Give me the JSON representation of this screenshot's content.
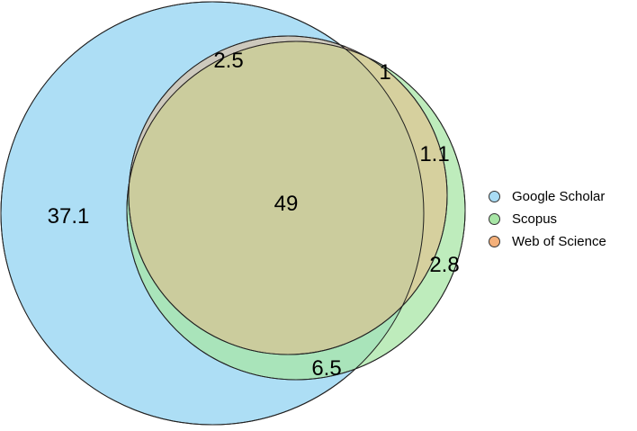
{
  "chart_data": {
    "type": "venn",
    "title": "",
    "sets": [
      {
        "name": "Google Scholar",
        "color": "#a9dcf4"
      },
      {
        "name": "Scopus",
        "color": "#a8e6a6"
      },
      {
        "name": "Web of Science",
        "color": "#f4b07a"
      }
    ],
    "regions": [
      {
        "sets": [
          "Google Scholar"
        ],
        "value": "37.1"
      },
      {
        "sets": [
          "Google Scholar",
          "Scopus",
          "Web of Science"
        ],
        "value": "49"
      },
      {
        "sets": [
          "Google Scholar",
          "Web of Science"
        ],
        "value": "2.5"
      },
      {
        "sets": [
          "Web of Science"
        ],
        "value": "1"
      },
      {
        "sets": [
          "Scopus",
          "Web of Science"
        ],
        "value": "1.1"
      },
      {
        "sets": [
          "Scopus"
        ],
        "value": "2.8"
      },
      {
        "sets": [
          "Google Scholar",
          "Scopus"
        ],
        "value": "6.5"
      }
    ],
    "legend_position": "right"
  }
}
